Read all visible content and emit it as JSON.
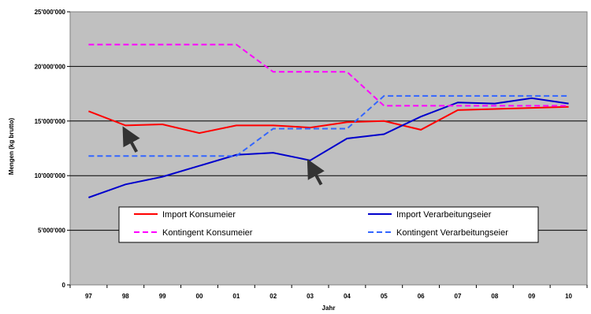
{
  "chart_data": {
    "type": "line",
    "title": "",
    "xlabel": "Jahr",
    "ylabel": "Mengen (kg brutto)",
    "categories": [
      "97",
      "98",
      "99",
      "00",
      "01",
      "02",
      "03",
      "04",
      "05",
      "06",
      "07",
      "08",
      "09",
      "10"
    ],
    "ylim": [
      0,
      25000000
    ],
    "y_ticks": [
      0,
      5000000,
      10000000,
      15000000,
      20000000,
      25000000
    ],
    "y_tick_labels": [
      "0",
      "5'000'000",
      "10'000'000",
      "15'000'000",
      "20'000'000",
      "25'000'000"
    ],
    "grid": "horizontal",
    "plot_background": "#c0c0c0",
    "legend_position": "bottom-center inside plot",
    "series": [
      {
        "name": "Import Konsumeier",
        "color": "#ff0000",
        "dash": "solid",
        "steps": false,
        "values": [
          15900000,
          14600000,
          14700000,
          13900000,
          14600000,
          14600000,
          14400000,
          14900000,
          15000000,
          14200000,
          16000000,
          16100000,
          16200000,
          16300000
        ]
      },
      {
        "name": "Import Verarbeitungseier",
        "color": "#0000cc",
        "dash": "solid",
        "steps": false,
        "values": [
          8000000,
          9200000,
          9900000,
          10900000,
          11900000,
          12100000,
          11400000,
          13400000,
          13800000,
          15400000,
          16700000,
          16600000,
          17100000,
          16600000
        ]
      },
      {
        "name": "Kontingent Konsumeier",
        "color": "#ff00ff",
        "dash": "dashed",
        "steps": true,
        "values": [
          22000000,
          22000000,
          22000000,
          22000000,
          22000000,
          19500000,
          19500000,
          19500000,
          16400000,
          16400000,
          16400000,
          16400000,
          16400000,
          16400000
        ]
      },
      {
        "name": "Kontingent Verarbeitungseier",
        "color": "#3366ff",
        "dash": "dashed",
        "steps": true,
        "values": [
          11800000,
          11800000,
          11800000,
          11800000,
          11800000,
          14300000,
          14300000,
          14300000,
          17300000,
          17300000,
          17300000,
          17300000,
          17300000,
          17300000
        ]
      }
    ],
    "annotations": [
      {
        "type": "arrow",
        "color": "#333333",
        "target_category": "98",
        "target_value": 14200000,
        "points_to": "Import Konsumeier"
      },
      {
        "type": "arrow",
        "color": "#333333",
        "target_category": "03",
        "target_value": 11200000,
        "points_to": "Import Verarbeitungseier"
      }
    ]
  }
}
